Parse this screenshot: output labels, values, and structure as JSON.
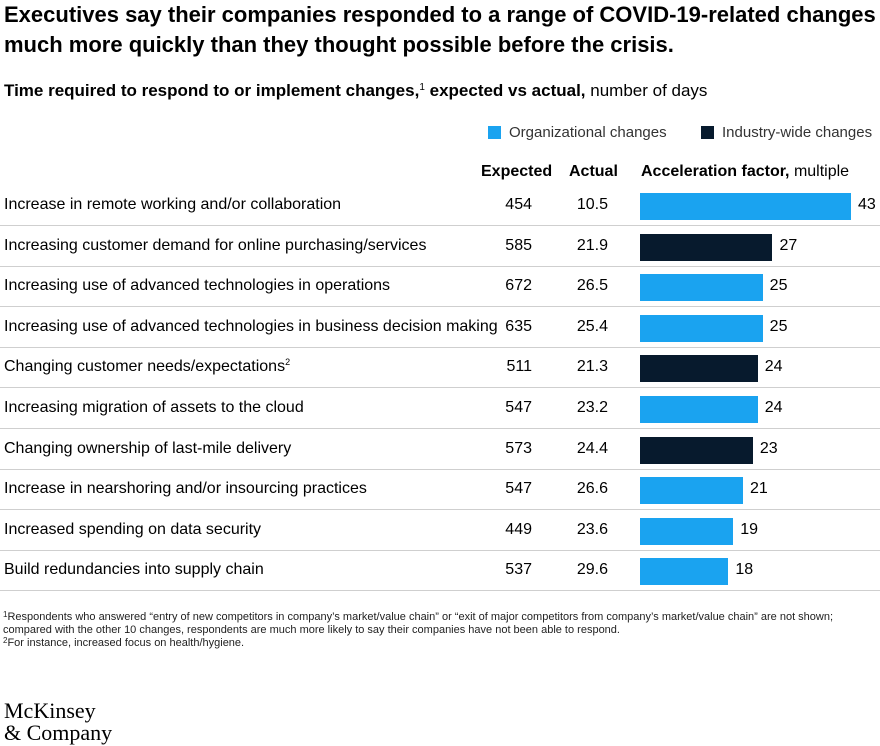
{
  "title": "Executives say their companies responded to a range of COVID-19-related changes much more quickly than they thought possible before the crisis.",
  "subtitle": {
    "bold": "Time required to respond to or implement changes,",
    "footnote_marker": "1",
    "bold2": " expected vs actual,",
    "light": " number of days"
  },
  "legend": [
    {
      "label": "Organizational changes",
      "color": "#1aa3f0"
    },
    {
      "label": "Industry-wide changes",
      "color": "#071a2d"
    }
  ],
  "columns": {
    "expected": "Expected",
    "actual": "Actual",
    "factor_bold": "Acceleration factor,",
    "factor_light": " multiple"
  },
  "colors": {
    "organizational": "#1aa3f0",
    "industry": "#071a2d"
  },
  "chart_data": {
    "type": "bar",
    "orientation": "horizontal",
    "title": "Time required to respond to or implement changes, expected vs actual, number of days",
    "xlabel": "Acceleration factor, multiple",
    "xlim": [
      0,
      43
    ],
    "rows": [
      {
        "label": "Increase in remote working and/or collaboration",
        "expected": "454",
        "actual": "10.5",
        "factor": 43,
        "category": "organizational"
      },
      {
        "label": "Increasing customer demand for online purchasing/services",
        "expected": "585",
        "actual": "21.9",
        "factor": 27,
        "category": "industry"
      },
      {
        "label": "Increasing use of advanced technologies in operations",
        "expected": "672",
        "actual": "26.5",
        "factor": 25,
        "category": "organizational"
      },
      {
        "label": "Increasing use of advanced technologies in business decision making",
        "expected": "635",
        "actual": "25.4",
        "factor": 25,
        "category": "organizational"
      },
      {
        "label": "Changing customer needs/expectations",
        "footnote_marker": "2",
        "expected": "511",
        "actual": "21.3",
        "factor": 24,
        "category": "industry"
      },
      {
        "label": "Increasing migration of assets to the cloud",
        "expected": "547",
        "actual": "23.2",
        "factor": 24,
        "category": "organizational"
      },
      {
        "label": "Changing ownership of last-mile delivery",
        "expected": "573",
        "actual": "24.4",
        "factor": 23,
        "category": "industry"
      },
      {
        "label": "Increase in nearshoring and/or insourcing practices",
        "expected": "547",
        "actual": "26.6",
        "factor": 21,
        "category": "organizational"
      },
      {
        "label": "Increased spending on data security",
        "expected": "449",
        "actual": "23.6",
        "factor": 19,
        "category": "organizational"
      },
      {
        "label": "Build redundancies into supply chain",
        "expected": "537",
        "actual": "29.6",
        "factor": 18,
        "category": "organizational"
      }
    ]
  },
  "footnotes": [
    {
      "marker": "1",
      "text": "Respondents who answered “entry of new competitors in company’s market/value chain” or “exit of major competitors from company’s market/value chain” are not shown; compared with the other 10 changes, respondents are much more likely to say their companies have not been able to respond."
    },
    {
      "marker": "2",
      "text": "For instance, increased focus on health/hygiene."
    }
  ],
  "logo": {
    "line1": "McKinsey",
    "line2": "& Company"
  }
}
